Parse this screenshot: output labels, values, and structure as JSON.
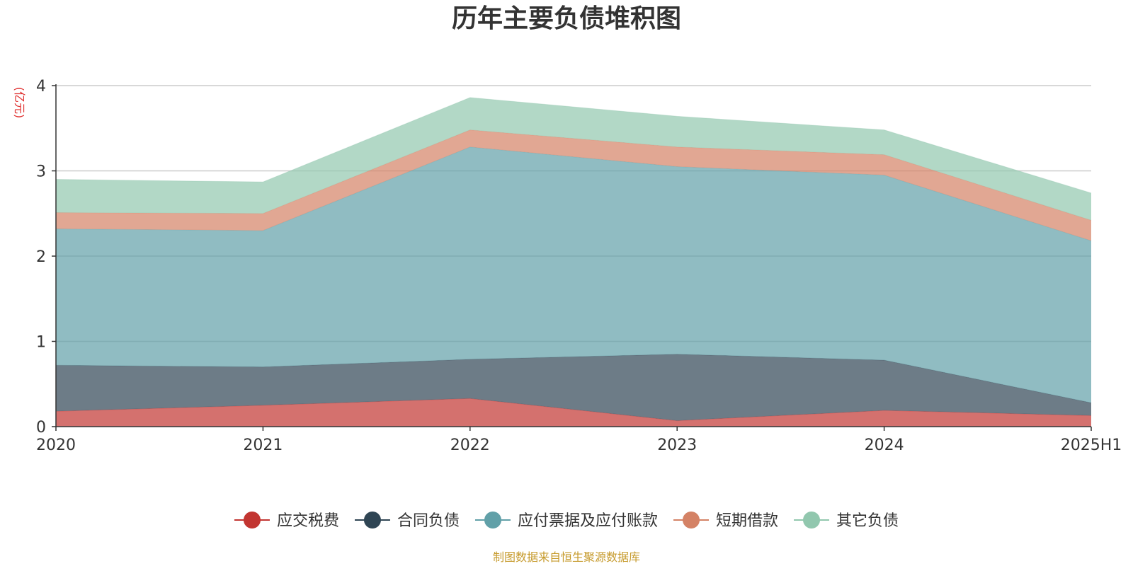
{
  "title": "历年主要负债堆积图",
  "unit_label": "(亿元)",
  "source": "制图数据来自恒生聚源数据库",
  "chart_data": {
    "type": "area",
    "stacked": true,
    "title": "历年主要负债堆积图",
    "ylabel": "(亿元)",
    "ylim": [
      0,
      4
    ],
    "yticks": [
      0,
      1,
      2,
      3,
      4
    ],
    "grid": true,
    "legend_position": "bottom",
    "categories": [
      "2020",
      "2021",
      "2022",
      "2023",
      "2024",
      "2025H1"
    ],
    "series": [
      {
        "name": "应交税费",
        "color": "#c23531",
        "values": [
          0.18,
          0.25,
          0.33,
          0.07,
          0.19,
          0.13
        ]
      },
      {
        "name": "合同负债",
        "color": "#2f4554",
        "values": [
          0.54,
          0.45,
          0.46,
          0.78,
          0.59,
          0.15
        ]
      },
      {
        "name": "应付票据及应付账款",
        "color": "#61a0a8",
        "values": [
          1.6,
          1.6,
          2.49,
          2.2,
          2.17,
          1.9
        ]
      },
      {
        "name": "短期借款",
        "color": "#d48265",
        "values": [
          0.19,
          0.2,
          0.2,
          0.23,
          0.24,
          0.24
        ]
      },
      {
        "name": "其它负债",
        "color": "#91c7ae",
        "values": [
          0.39,
          0.37,
          0.38,
          0.36,
          0.29,
          0.32
        ]
      }
    ]
  }
}
